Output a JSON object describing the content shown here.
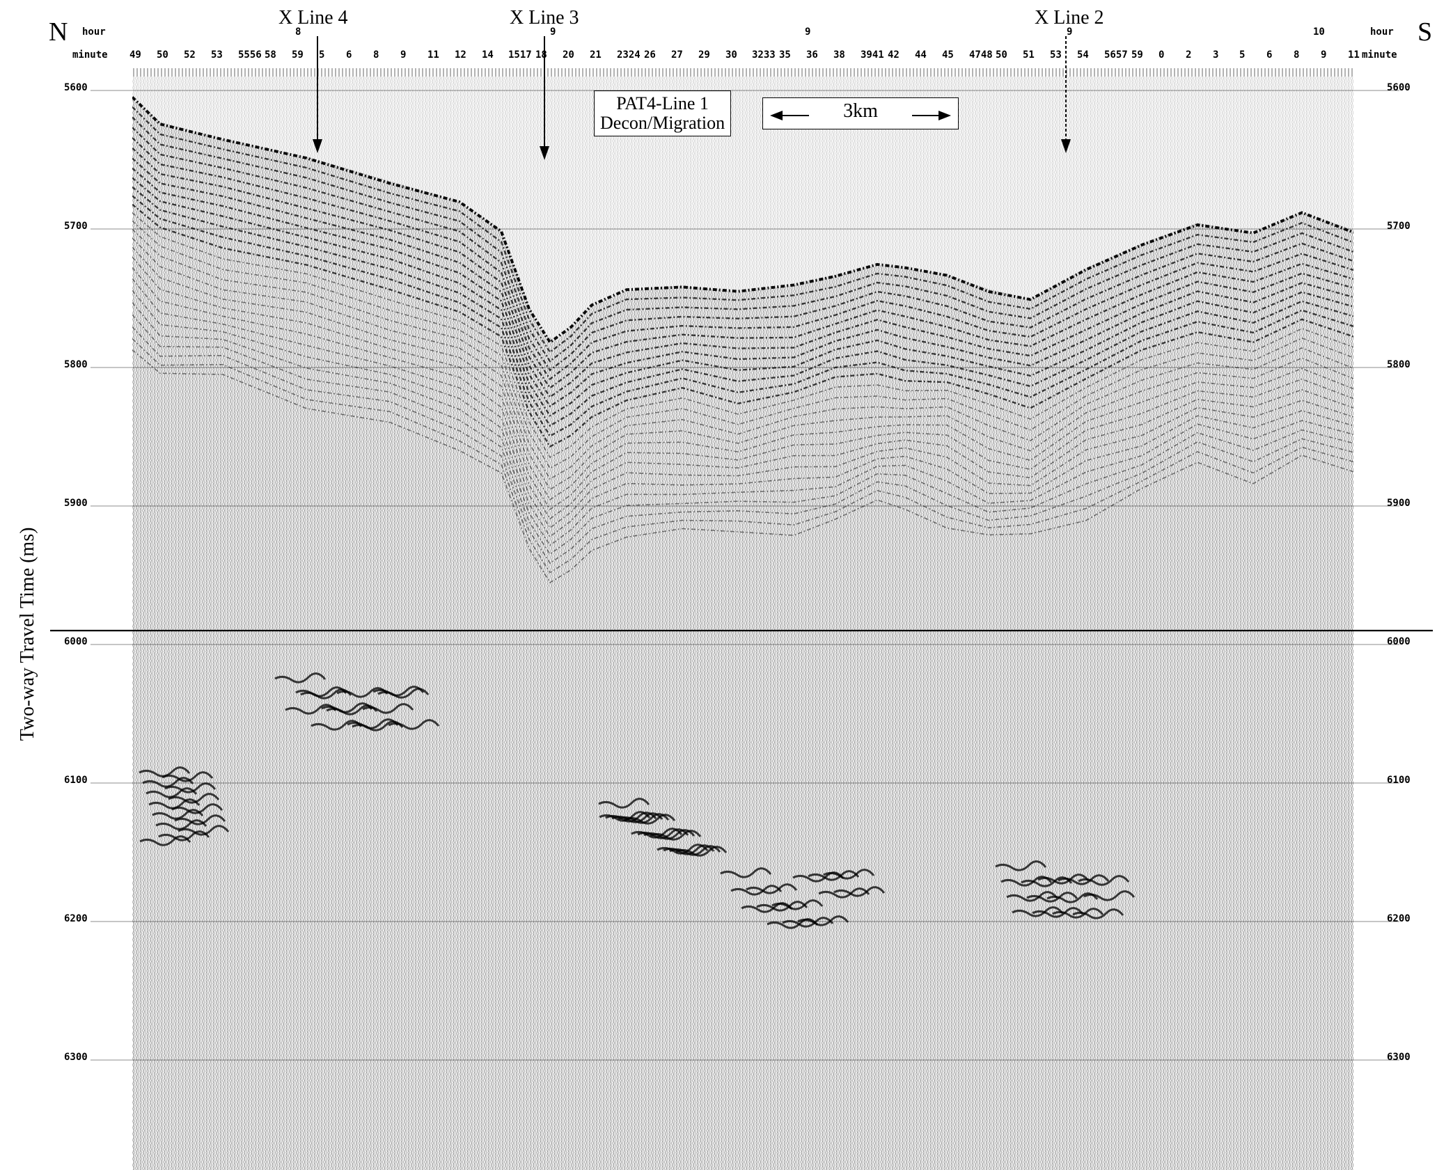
{
  "figure": {
    "title_line1": "PAT4-Line 1",
    "title_line2": "Decon/Migration",
    "scale_text": "3km",
    "left_direction": "N",
    "right_direction": "S",
    "y_axis_label": "Two-way Travel Time (ms)"
  },
  "header": {
    "hour_label": "hour",
    "minute_label": "minute",
    "hour_values": [
      "8",
      "9",
      "9",
      "9",
      "10"
    ],
    "minute_values": [
      "49",
      "50",
      "52",
      "53",
      "5556",
      "58",
      "59",
      "5",
      "6",
      "8",
      "9",
      "11",
      "12",
      "14",
      "1517",
      "18",
      "20",
      "21",
      "2324",
      "26",
      "27",
      "29",
      "30",
      "3233",
      "35",
      "36",
      "38",
      "3941",
      "42",
      "44",
      "45",
      "4748",
      "50",
      "51",
      "53",
      "54",
      "5657",
      "59",
      "0",
      "2",
      "3",
      "5",
      "6",
      "8",
      "9",
      "11"
    ]
  },
  "crosslines": [
    {
      "label": "X Line 4"
    },
    {
      "label": "X Line 3"
    },
    {
      "label": "X Line 2"
    }
  ],
  "chart_data": {
    "type": "seismic section",
    "y_axis": {
      "label": "Two-way Travel Time (ms)",
      "ticks": [
        "5600",
        "5700",
        "5800",
        "5900",
        "6000",
        "6100",
        "6200",
        "6300"
      ],
      "range": [
        5600,
        6390
      ]
    }
  }
}
